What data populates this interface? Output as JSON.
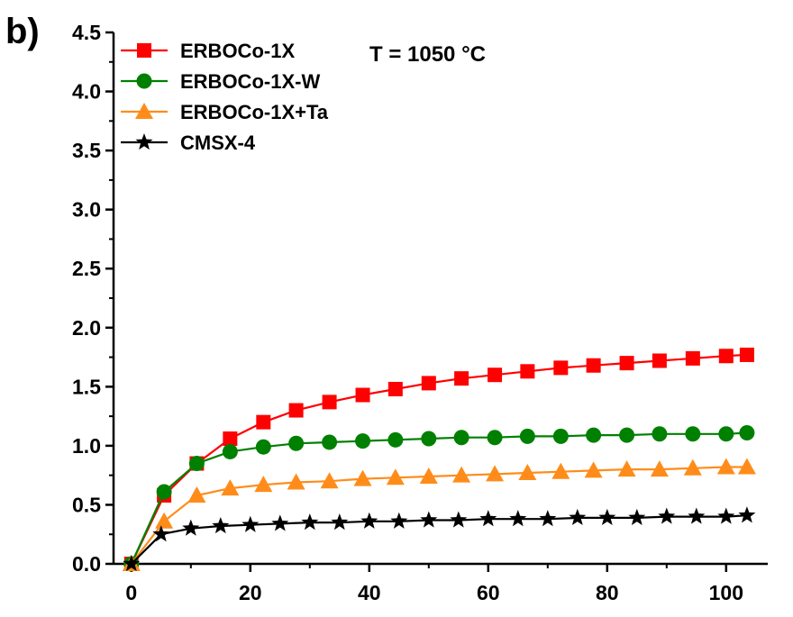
{
  "panel_label": "b)",
  "chart_data": {
    "type": "line",
    "title": "",
    "xlabel": "",
    "ylabel": "",
    "annotation": "T = 1050 °C",
    "xlim": [
      -3,
      107
    ],
    "ylim": [
      0,
      4.5
    ],
    "xticks": [
      0,
      20,
      40,
      60,
      80,
      100
    ],
    "xtick_labels": [
      "0",
      "20",
      "40",
      "60",
      "80",
      "100"
    ],
    "yticks": [
      0.0,
      0.5,
      1.0,
      1.5,
      2.0,
      2.5,
      3.0,
      3.5,
      4.0,
      4.5
    ],
    "ytick_labels": [
      "0.0",
      "0.5",
      "1.0",
      "1.5",
      "2.0",
      "2.5",
      "3.0",
      "3.5",
      "4.0",
      "4.5"
    ],
    "grid": false,
    "legend_position": "top-left",
    "series": [
      {
        "name": "ERBOCo-1X",
        "color": "#ff0000",
        "marker": "square",
        "x": [
          0,
          5.5,
          11,
          16.6,
          22.2,
          27.7,
          33.3,
          38.9,
          44.4,
          50,
          55.5,
          61.1,
          66.6,
          72.2,
          77.7,
          83.3,
          88.8,
          94.4,
          100,
          103.5
        ],
        "y": [
          0.0,
          0.58,
          0.85,
          1.06,
          1.2,
          1.3,
          1.37,
          1.43,
          1.48,
          1.53,
          1.57,
          1.6,
          1.63,
          1.66,
          1.68,
          1.7,
          1.72,
          1.74,
          1.76,
          1.77
        ]
      },
      {
        "name": "ERBOCo-1X-W",
        "color": "#008000",
        "marker": "circle",
        "x": [
          0,
          5.5,
          11,
          16.6,
          22.2,
          27.7,
          33.3,
          38.9,
          44.4,
          50,
          55.5,
          61.1,
          66.6,
          72.2,
          77.7,
          83.3,
          88.8,
          94.4,
          100,
          103.5
        ],
        "y": [
          0.0,
          0.61,
          0.85,
          0.95,
          0.99,
          1.02,
          1.03,
          1.04,
          1.05,
          1.06,
          1.07,
          1.07,
          1.08,
          1.08,
          1.09,
          1.09,
          1.1,
          1.1,
          1.1,
          1.11
        ]
      },
      {
        "name": "ERBOCo-1X+Ta",
        "color": "#ff8c1a",
        "marker": "triangle",
        "x": [
          0,
          5.5,
          11,
          16.6,
          22.2,
          27.7,
          33.3,
          38.9,
          44.4,
          50,
          55.5,
          61.1,
          66.6,
          72.2,
          77.7,
          83.3,
          88.8,
          94.4,
          100,
          103.5
        ],
        "y": [
          0.0,
          0.36,
          0.58,
          0.64,
          0.67,
          0.69,
          0.7,
          0.72,
          0.73,
          0.74,
          0.75,
          0.76,
          0.77,
          0.78,
          0.79,
          0.8,
          0.8,
          0.81,
          0.82,
          0.82
        ]
      },
      {
        "name": "CMSX-4",
        "color": "#000000",
        "marker": "star",
        "x": [
          0,
          5,
          10,
          15,
          20,
          25,
          30,
          35,
          40,
          45,
          50,
          55,
          60,
          65,
          70,
          75,
          80,
          85,
          90,
          95,
          100,
          103.5
        ],
        "y": [
          0.0,
          0.25,
          0.3,
          0.32,
          0.33,
          0.34,
          0.35,
          0.35,
          0.36,
          0.36,
          0.37,
          0.37,
          0.38,
          0.38,
          0.38,
          0.39,
          0.39,
          0.39,
          0.4,
          0.4,
          0.4,
          0.41
        ]
      }
    ]
  }
}
